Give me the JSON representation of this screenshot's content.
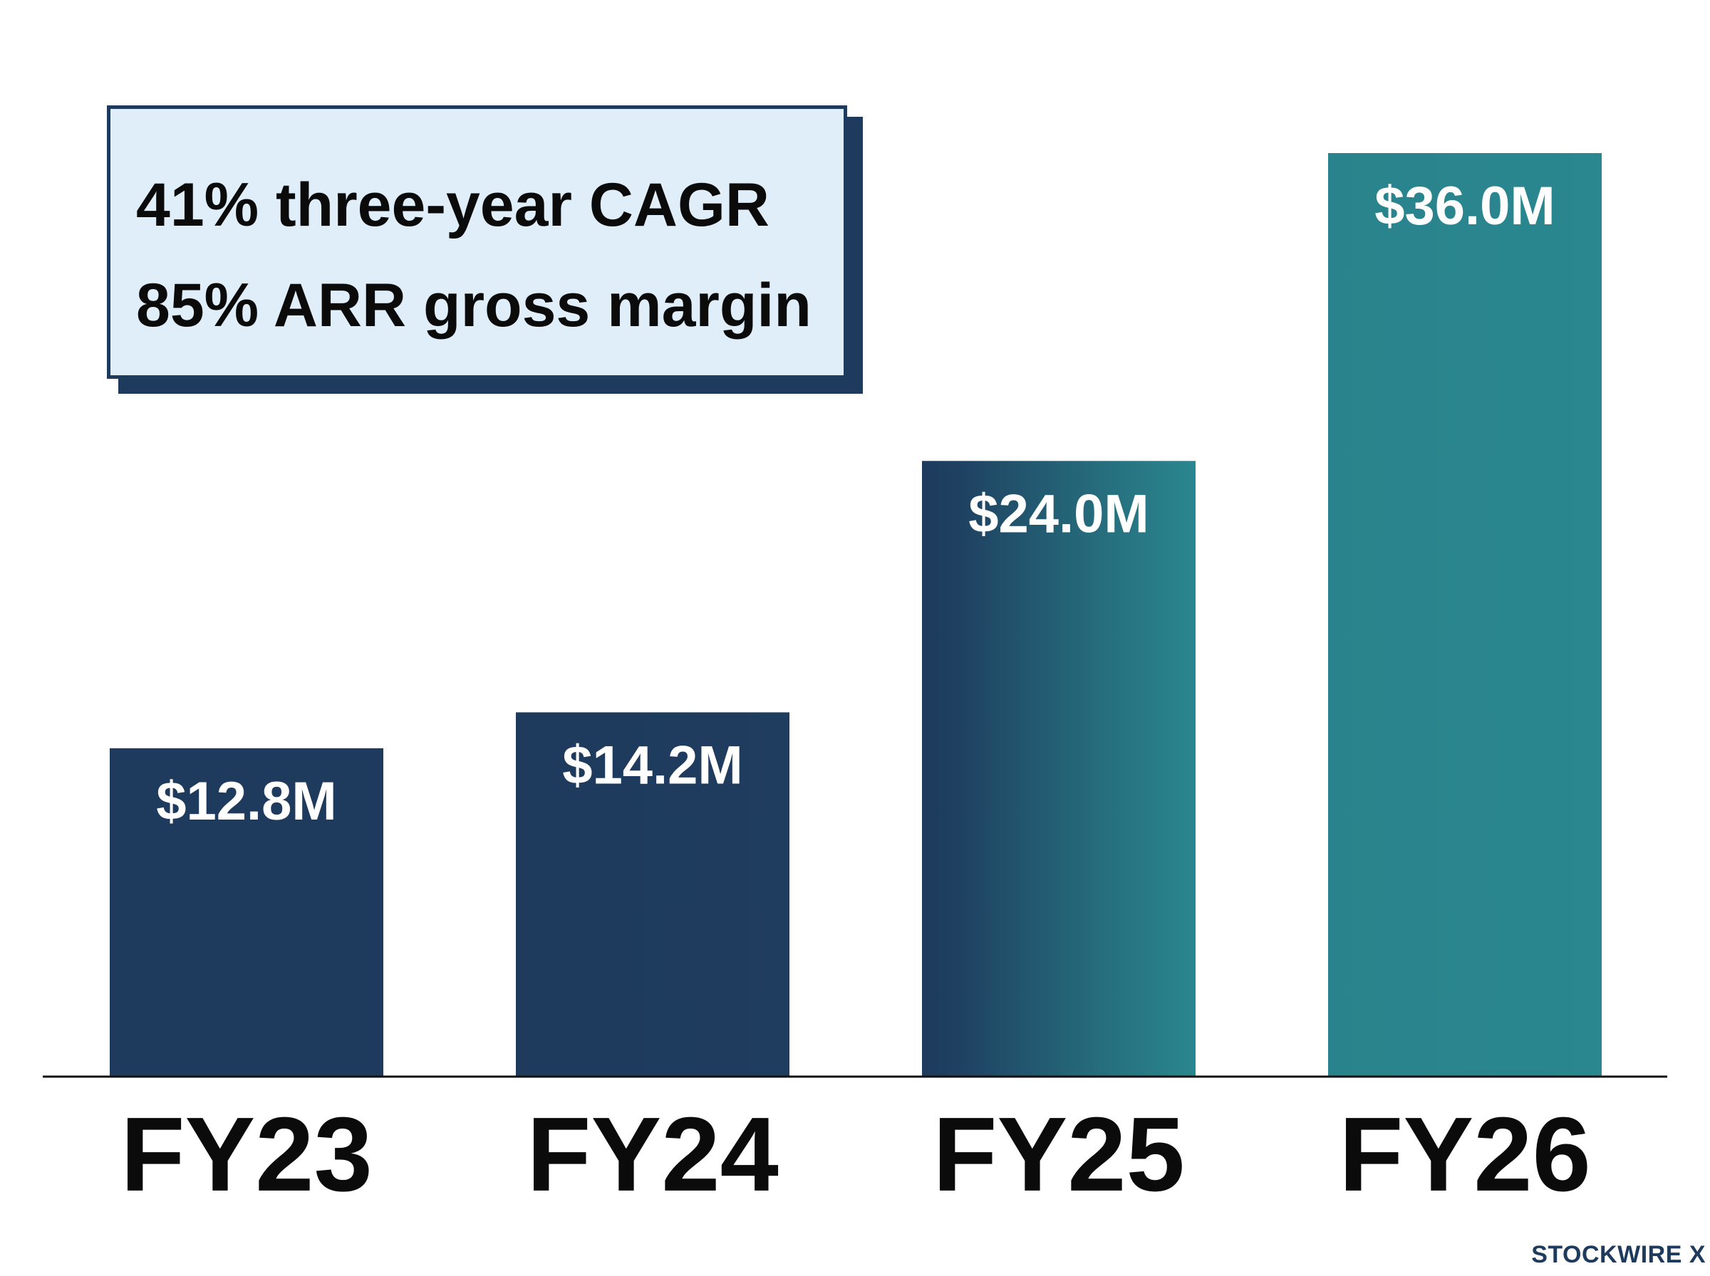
{
  "chart_data": {
    "type": "bar",
    "categories": [
      "FY23",
      "FY24",
      "FY25",
      "FY26"
    ],
    "values": [
      12.8,
      14.2,
      24.0,
      36.0
    ],
    "data_labels": [
      "$12.8M",
      "$14.2M",
      "$24.0M",
      "$36.0M"
    ],
    "unit": "$M",
    "title": "",
    "xlabel": "",
    "ylabel": "",
    "ylim": [
      0,
      36.0
    ],
    "grid": false,
    "legend": "none",
    "annotations": [
      "41% three-year CAGR",
      "85% ARR gross margin"
    ]
  },
  "callout": {
    "line1": "41% three-year CAGR",
    "line2": "85% ARR gross margin"
  },
  "brand": {
    "watermark": "STOCKWIRE X"
  },
  "colors": {
    "navy": "#1e3a5c",
    "teal": "#2a8790",
    "callout_bg": "#e0eef9",
    "baseline": "#111111",
    "text": "#0b0b0b"
  }
}
